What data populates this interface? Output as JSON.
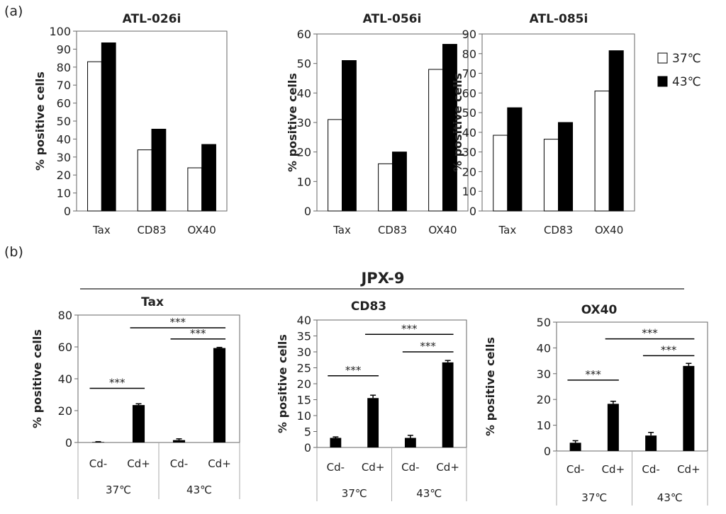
{
  "panel_labels": {
    "a": "(a)",
    "b": "(b)"
  },
  "group_title_b": "JPX-9",
  "legend": [
    {
      "label": "37℃",
      "color": "#ffffff"
    },
    {
      "label": "43℃",
      "color": "#000000"
    }
  ],
  "chart_data": [
    {
      "type": "bar",
      "title": "ATL-026i",
      "ylabel": "% positive cells",
      "categories": [
        "Tax",
        "CD83",
        "OX40"
      ],
      "ylim": [
        0,
        100
      ],
      "yticks": [
        0,
        10,
        20,
        30,
        40,
        50,
        60,
        70,
        80,
        90,
        100
      ],
      "series": [
        {
          "name": "37℃",
          "values": [
            83,
            34,
            24
          ]
        },
        {
          "name": "43℃",
          "values": [
            93.5,
            45.5,
            37
          ]
        }
      ]
    },
    {
      "type": "bar",
      "title": "ATL-056i",
      "ylabel": "% positive cells",
      "categories": [
        "Tax",
        "CD83",
        "OX40"
      ],
      "ylim": [
        0,
        60
      ],
      "yticks": [
        0,
        10,
        20,
        30,
        40,
        50,
        60
      ],
      "series": [
        {
          "name": "37℃",
          "values": [
            31,
            16,
            48
          ]
        },
        {
          "name": "43℃",
          "values": [
            51,
            20,
            56.5
          ]
        }
      ]
    },
    {
      "type": "bar",
      "title": "ATL-085i",
      "ylabel": "% positive cells",
      "categories": [
        "Tax",
        "CD83",
        "OX40"
      ],
      "ylim": [
        0,
        90
      ],
      "yticks": [
        0,
        10,
        20,
        30,
        40,
        50,
        60,
        70,
        80,
        90
      ],
      "series": [
        {
          "name": "37℃",
          "values": [
            38.5,
            36.5,
            61
          ]
        },
        {
          "name": "43℃",
          "values": [
            52.5,
            45,
            81.5
          ]
        }
      ]
    },
    {
      "type": "bar",
      "title": "Tax",
      "ylabel": "% positive cells",
      "categories": [
        "Cd-",
        "Cd+",
        "Cd-",
        "Cd+"
      ],
      "groups": [
        "37℃",
        "43℃"
      ],
      "ylim": [
        0,
        80
      ],
      "yticks": [
        0,
        20,
        40,
        60,
        80
      ],
      "values": [
        0.3,
        23.5,
        1.5,
        59.3
      ],
      "errors": [
        0.2,
        0.8,
        0.8,
        0.4
      ],
      "significance": [
        {
          "from": 0,
          "to": 1,
          "label": "***",
          "y": 34
        },
        {
          "from": 1,
          "to": 3,
          "label": "***",
          "y": 72
        },
        {
          "from": 2,
          "to": 3,
          "label": "***",
          "y": 65
        }
      ]
    },
    {
      "type": "bar",
      "title": "CD83",
      "ylabel": "% positive cells",
      "categories": [
        "Cd-",
        "Cd+",
        "Cd-",
        "Cd+"
      ],
      "groups": [
        "37℃",
        "43℃"
      ],
      "ylim": [
        0,
        40
      ],
      "yticks": [
        0,
        5,
        10,
        15,
        20,
        25,
        30,
        35,
        40
      ],
      "values": [
        3,
        15.5,
        3,
        26.7
      ],
      "errors": [
        0.3,
        0.9,
        0.8,
        0.6
      ],
      "significance": [
        {
          "from": 0,
          "to": 1,
          "label": "***",
          "y": 22.5
        },
        {
          "from": 1,
          "to": 3,
          "label": "***",
          "y": 35.5
        },
        {
          "from": 2,
          "to": 3,
          "label": "***",
          "y": 30
        }
      ]
    },
    {
      "type": "bar",
      "title": "OX40",
      "ylabel": "% positive cells",
      "categories": [
        "Cd-",
        "Cd+",
        "Cd-",
        "Cd+"
      ],
      "groups": [
        "37℃",
        "43℃"
      ],
      "ylim": [
        0,
        50
      ],
      "yticks": [
        0,
        10,
        20,
        30,
        40,
        50
      ],
      "values": [
        3.2,
        18.3,
        6,
        33
      ],
      "errors": [
        0.8,
        1.0,
        1.2,
        1.0
      ],
      "significance": [
        {
          "from": 0,
          "to": 1,
          "label": "***",
          "y": 27.5
        },
        {
          "from": 1,
          "to": 3,
          "label": "***",
          "y": 43.5
        },
        {
          "from": 2,
          "to": 3,
          "label": "***",
          "y": 37
        }
      ]
    }
  ]
}
